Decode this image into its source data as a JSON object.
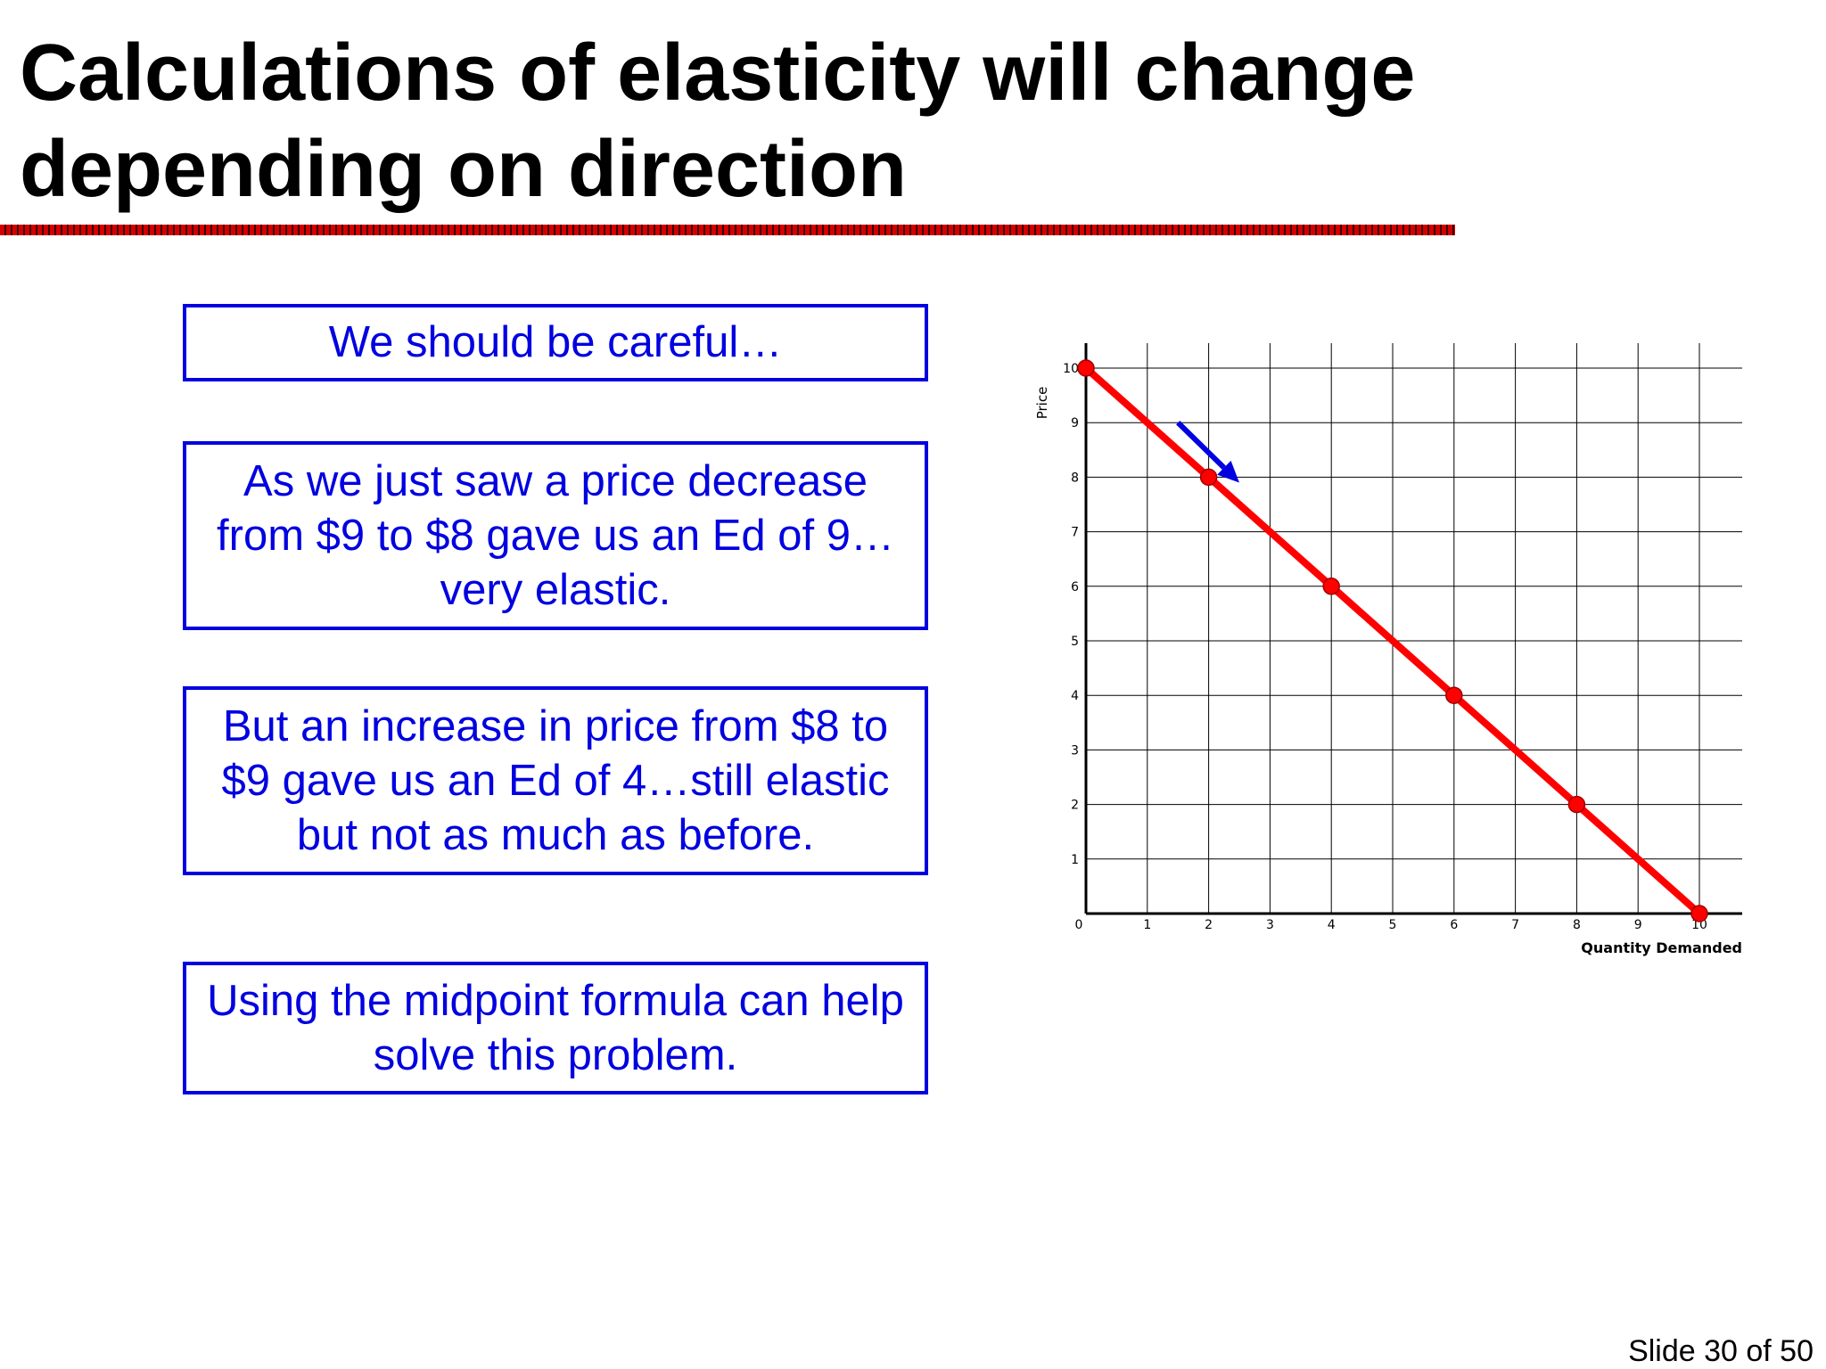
{
  "slide": {
    "title": "Calculations of elasticity will change depending on direction",
    "slide_number": "Slide 30 of 50"
  },
  "boxes": [
    {
      "text": "We should be careful…"
    },
    {
      "text": "As we just saw a price decrease from $9 to $8 gave us an Ed of 9…very elastic."
    },
    {
      "text": "But an increase in price from $8 to $9 gave us an Ed of 4…still elastic but not as much as before."
    },
    {
      "text": "Using the midpoint formula can help solve this problem."
    }
  ],
  "colors": {
    "box_text": "#0000e0",
    "curve": "#ff0000",
    "arrow": "#0000e0",
    "rule": "#d40000"
  },
  "chart_data": {
    "type": "line",
    "xlabel": "Quantity Demanded",
    "ylabel": "Price",
    "xlim": [
      0,
      10
    ],
    "ylim": [
      0,
      10
    ],
    "x_ticks": [
      "0",
      "1",
      "2",
      "3",
      "4",
      "5",
      "6",
      "7",
      "8",
      "9",
      "10"
    ],
    "y_ticks": [
      "1",
      "2",
      "3",
      "4",
      "5",
      "6",
      "7",
      "8",
      "9",
      "10"
    ],
    "grid": true,
    "series": [
      {
        "x": [
          0,
          2,
          4,
          6,
          8,
          10
        ],
        "y": [
          10,
          8,
          6,
          4,
          2,
          0
        ],
        "color": "#ff0000"
      }
    ],
    "annotation": {
      "type": "arrow",
      "from": [
        1.5,
        9
      ],
      "to": [
        2.5,
        7.9
      ],
      "color": "#0000e0"
    }
  }
}
